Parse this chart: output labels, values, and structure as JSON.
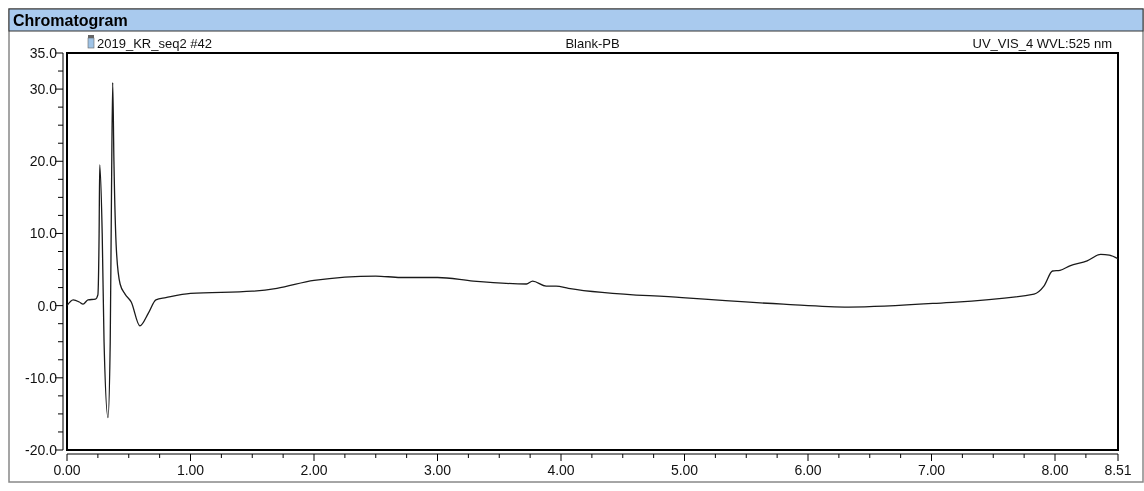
{
  "chart_data": {
    "type": "line",
    "title": "Chromatogram",
    "annotations": [
      "2019_KR_seq2 #42",
      "Blank-PB",
      "UV_VIS_4 WVL:525 nm"
    ],
    "xlim": [
      0,
      8.51
    ],
    "ylim": [
      -20,
      35
    ],
    "xticks": [
      {
        "value": 0,
        "label": "0.00"
      },
      {
        "value": 0.25,
        "label": null
      },
      {
        "value": 0.5,
        "label": null
      },
      {
        "value": 0.75,
        "label": null
      },
      {
        "value": 1,
        "label": "1.00"
      },
      {
        "value": 1.25,
        "label": null
      },
      {
        "value": 1.5,
        "label": null
      },
      {
        "value": 1.75,
        "label": null
      },
      {
        "value": 2,
        "label": "2.00"
      },
      {
        "value": 2.25,
        "label": null
      },
      {
        "value": 2.5,
        "label": null
      },
      {
        "value": 2.75,
        "label": null
      },
      {
        "value": 3,
        "label": "3.00"
      },
      {
        "value": 3.25,
        "label": null
      },
      {
        "value": 3.5,
        "label": null
      },
      {
        "value": 3.75,
        "label": null
      },
      {
        "value": 4,
        "label": "4.00"
      },
      {
        "value": 4.25,
        "label": null
      },
      {
        "value": 4.5,
        "label": null
      },
      {
        "value": 4.75,
        "label": null
      },
      {
        "value": 5,
        "label": "5.00"
      },
      {
        "value": 5.25,
        "label": null
      },
      {
        "value": 5.5,
        "label": null
      },
      {
        "value": 5.75,
        "label": null
      },
      {
        "value": 6,
        "label": "6.00"
      },
      {
        "value": 6.25,
        "label": null
      },
      {
        "value": 6.5,
        "label": null
      },
      {
        "value": 6.75,
        "label": null
      },
      {
        "value": 7,
        "label": "7.00"
      },
      {
        "value": 7.25,
        "label": null
      },
      {
        "value": 7.5,
        "label": null
      },
      {
        "value": 7.75,
        "label": null
      },
      {
        "value": 8,
        "label": "8.00"
      },
      {
        "value": 8.25,
        "label": null
      },
      {
        "value": 8.51,
        "label": "8.51"
      }
    ],
    "yticks": [
      {
        "value": 35,
        "label": "35.0"
      },
      {
        "value": 32.5,
        "label": null
      },
      {
        "value": 30,
        "label": "30.0"
      },
      {
        "value": 27.5,
        "label": null
      },
      {
        "value": 25,
        "label": null
      },
      {
        "value": 22.5,
        "label": null
      },
      {
        "value": 20,
        "label": "20.0"
      },
      {
        "value": 17.5,
        "label": null
      },
      {
        "value": 15,
        "label": null
      },
      {
        "value": 12.5,
        "label": null
      },
      {
        "value": 10,
        "label": "10.0"
      },
      {
        "value": 7.5,
        "label": null
      },
      {
        "value": 5,
        "label": null
      },
      {
        "value": 2.5,
        "label": null
      },
      {
        "value": 0,
        "label": "0.0"
      },
      {
        "value": -2.5,
        "label": null
      },
      {
        "value": -5,
        "label": null
      },
      {
        "value": -7.5,
        "label": null
      },
      {
        "value": -10,
        "label": "-10.0"
      },
      {
        "value": -12.5,
        "label": null
      },
      {
        "value": -15,
        "label": null
      },
      {
        "value": -17.5,
        "label": null
      },
      {
        "value": -20,
        "label": "-20.0"
      }
    ],
    "series": [
      {
        "color": "#1a1a1a",
        "x": [
          0,
          0.05,
          0.1,
          0.13,
          0.17,
          0.23,
          0.25,
          0.26,
          0.265,
          0.285,
          0.3,
          0.332,
          0.35,
          0.36,
          0.37,
          0.38,
          0.4,
          0.43,
          0.47,
          0.52,
          0.59,
          0.66,
          0.72,
          0.8,
          1.0,
          1.5,
          1.7,
          2.0,
          2.5,
          2.7,
          3.0,
          3.29,
          3.72,
          3.77,
          3.88,
          3.96,
          4.06,
          4.98,
          5.8,
          6.33,
          7.01,
          7.83,
          7.91,
          7.98,
          8.04,
          8.12,
          8.26,
          8.37,
          8.44,
          8.51
        ],
        "values": [
          0,
          0.8,
          0.5,
          0.2,
          0.8,
          0.9,
          1.5,
          10,
          19.5,
          10,
          -5,
          -15.5,
          -5,
          15,
          30.9,
          20,
          7.7,
          3,
          1.6,
          0.5,
          -2.8,
          -1,
          0.8,
          1.1,
          1.7,
          2.0,
          2.4,
          3.5,
          4.1,
          3.9,
          3.9,
          3.4,
          3.0,
          3.4,
          2.7,
          2.7,
          2.4,
          1.1,
          0.2,
          -0.2,
          0.3,
          1.6,
          2.7,
          4.8,
          4.9,
          5.5,
          6.2,
          7.1,
          7.0,
          6.5
        ]
      }
    ]
  }
}
